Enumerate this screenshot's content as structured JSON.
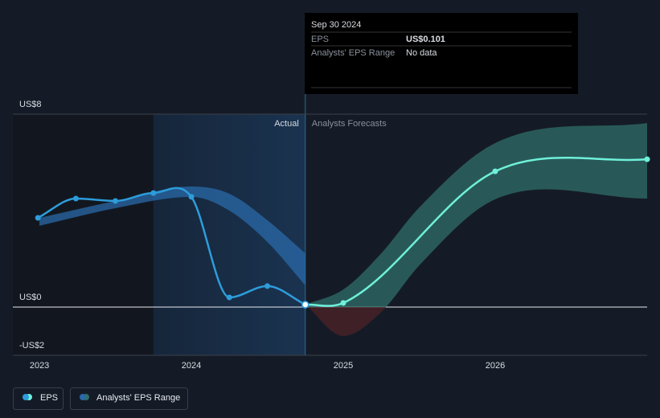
{
  "chart_data": {
    "type": "line",
    "xlim": [
      2022.825,
      2027
    ],
    "xticks": [
      2023,
      2024,
      2025,
      2026
    ],
    "ylim": [
      -2,
      8
    ],
    "yticks": [
      {
        "value": 8,
        "label": "US$8"
      },
      {
        "value": 0,
        "label": "US$0"
      },
      {
        "value": -2,
        "label": "-US$2"
      }
    ],
    "highlight_start": 2023.75,
    "divider_x": 2024.75,
    "divider_labels": [
      "Actual",
      "Analysts Forecasts"
    ],
    "series": [
      {
        "name": "EPS",
        "color": "#2d9cdb",
        "x": [
          2022.99,
          2023.24,
          2023.5,
          2023.75,
          2024.0,
          2024.25,
          2024.5,
          2024.75
        ],
        "values": [
          3.7,
          4.5,
          4.4,
          4.73,
          4.57,
          0.4,
          0.87,
          0.101
        ]
      },
      {
        "color": "#6ff0d9",
        "x": [
          2024.75,
          2025,
          2026,
          2027
        ],
        "values": [
          0.101,
          0.17,
          5.63,
          6.13
        ]
      }
    ],
    "range_series": [
      {
        "name": "Analysts' EPS Range",
        "color": "#2f6f6a",
        "negative_color": "#4a2228",
        "x": [
          2024.75,
          2025,
          2025.25,
          2025.5,
          2026,
          2027
        ],
        "low": [
          0.101,
          -1.2,
          -0.2,
          1.73,
          4.47,
          4.5
        ],
        "high": [
          0.101,
          0.73,
          2.23,
          4.13,
          6.8,
          7.63
        ]
      },
      {
        "color": "#2a6aa8",
        "x": [
          2023,
          2023.5,
          2024,
          2024.25,
          2024.5,
          2024.75
        ],
        "low": [
          3.37,
          4.1,
          4.57,
          4.0,
          2.7,
          0.9
        ],
        "high": [
          3.7,
          4.4,
          5.0,
          4.7,
          3.6,
          2.23
        ]
      }
    ],
    "tooltip": {
      "date": "Sep 30 2024",
      "rows": [
        {
          "label": "EPS",
          "value": "US$0.101"
        },
        {
          "label": "Analysts' EPS Range",
          "value": "No data"
        }
      ]
    }
  }
}
